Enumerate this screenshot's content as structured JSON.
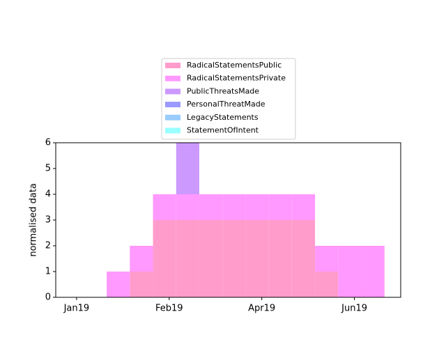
{
  "chart_data": {
    "type": "histogram",
    "y_label": "normalised data",
    "bins": [
      1.3,
      2.3,
      3.3,
      4.3,
      5.3,
      6.3,
      7.3,
      8.3,
      9.3,
      10.3,
      11.3,
      12.3,
      13.3
    ],
    "series": [
      {
        "name": "RadicalStatementsPublic",
        "color": "#ff9ccc",
        "values": [
          0,
          1,
          3,
          3,
          3,
          3,
          3,
          3,
          3,
          1,
          0,
          0
        ]
      },
      {
        "name": "RadicalStatementsPrivate",
        "color": "#ff99ff",
        "values": [
          1,
          1,
          1,
          1,
          1,
          1,
          1,
          1,
          1,
          1,
          2,
          2
        ]
      },
      {
        "name": "PublicThreatsMade",
        "color": "#cc99ff",
        "values": [
          0,
          0,
          0,
          2,
          0,
          0,
          0,
          0,
          0,
          0,
          0,
          0
        ]
      },
      {
        "name": "PersonalThreatMade",
        "color": "#9999ff",
        "values": [
          0,
          0,
          0,
          0,
          0,
          0,
          0,
          0,
          0,
          0,
          0,
          0
        ]
      },
      {
        "name": "LegacyStatements",
        "color": "#99ccff",
        "values": [
          0,
          0,
          0,
          0,
          0,
          0,
          0,
          0,
          0,
          0,
          0,
          0
        ]
      },
      {
        "name": "StatementOfIntent",
        "color": "#99ffff",
        "values": [
          0,
          0,
          0,
          0,
          0,
          0,
          0,
          0,
          0,
          0,
          0,
          0
        ]
      }
    ],
    "stacked": true,
    "xlim": [
      -0.9,
      14
    ],
    "xticks": [
      {
        "value": 0,
        "label": "Jan19"
      },
      {
        "value": 4,
        "label": "Feb19"
      },
      {
        "value": 8,
        "label": "Apr19"
      },
      {
        "value": 12,
        "label": "Jun19"
      }
    ],
    "ylim": [
      0,
      6
    ],
    "yticks": [
      0,
      1,
      2,
      3,
      4,
      5,
      6
    ],
    "legend": "top"
  }
}
